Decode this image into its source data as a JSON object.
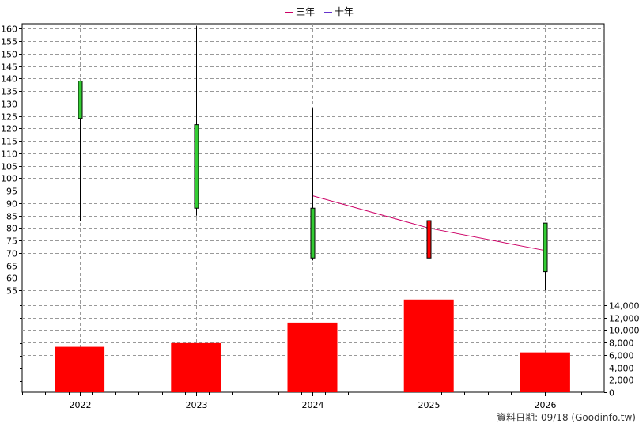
{
  "legend": [
    {
      "label": "三年",
      "color": "#cc0066"
    },
    {
      "label": "十年",
      "color": "#6633cc"
    }
  ],
  "footnote": "資料日期: 09/18 (Goodinfo.tw)",
  "chart_data": {
    "type": "candlestick+bar",
    "categories": [
      "2022",
      "2023",
      "2024",
      "2025",
      "2026"
    ],
    "price_axis": {
      "ylim": [
        50,
        162
      ],
      "ticks": [
        55,
        60,
        65,
        70,
        75,
        80,
        85,
        90,
        95,
        100,
        105,
        110,
        115,
        120,
        125,
        130,
        135,
        140,
        145,
        150,
        155,
        160
      ]
    },
    "candles": [
      {
        "open": 139,
        "close": 124,
        "high": 139,
        "low": 83,
        "color": "#33cc33"
      },
      {
        "open": 121.5,
        "close": 88,
        "high": 161,
        "low": 85,
        "color": "#33cc33"
      },
      {
        "open": 88,
        "close": 68,
        "high": 128,
        "low": 67,
        "color": "#33cc33"
      },
      {
        "open": 68,
        "close": 83,
        "high": 130,
        "low": 67,
        "color": "#ff0000"
      },
      {
        "open": 82,
        "close": 62.5,
        "high": 82,
        "low": 55,
        "color": "#33cc33"
      }
    ],
    "volume_axis": {
      "ylim": [
        0,
        15000
      ],
      "ticks": [
        0,
        2000,
        4000,
        6000,
        8000,
        10000,
        12000,
        14000
      ],
      "tick_labels": [
        "0",
        "2,000",
        "4,000",
        "6,000",
        "8,000",
        "10,000",
        "12,000",
        "14,000"
      ]
    },
    "volume": [
      7300,
      7900,
      11200,
      14900,
      6400
    ],
    "volume_color": "#ff0000",
    "three_year_line": {
      "x": [
        "2024",
        "2025",
        "2026"
      ],
      "values": [
        93,
        80,
        71
      ],
      "color": "#cc0066"
    },
    "grid": true
  }
}
